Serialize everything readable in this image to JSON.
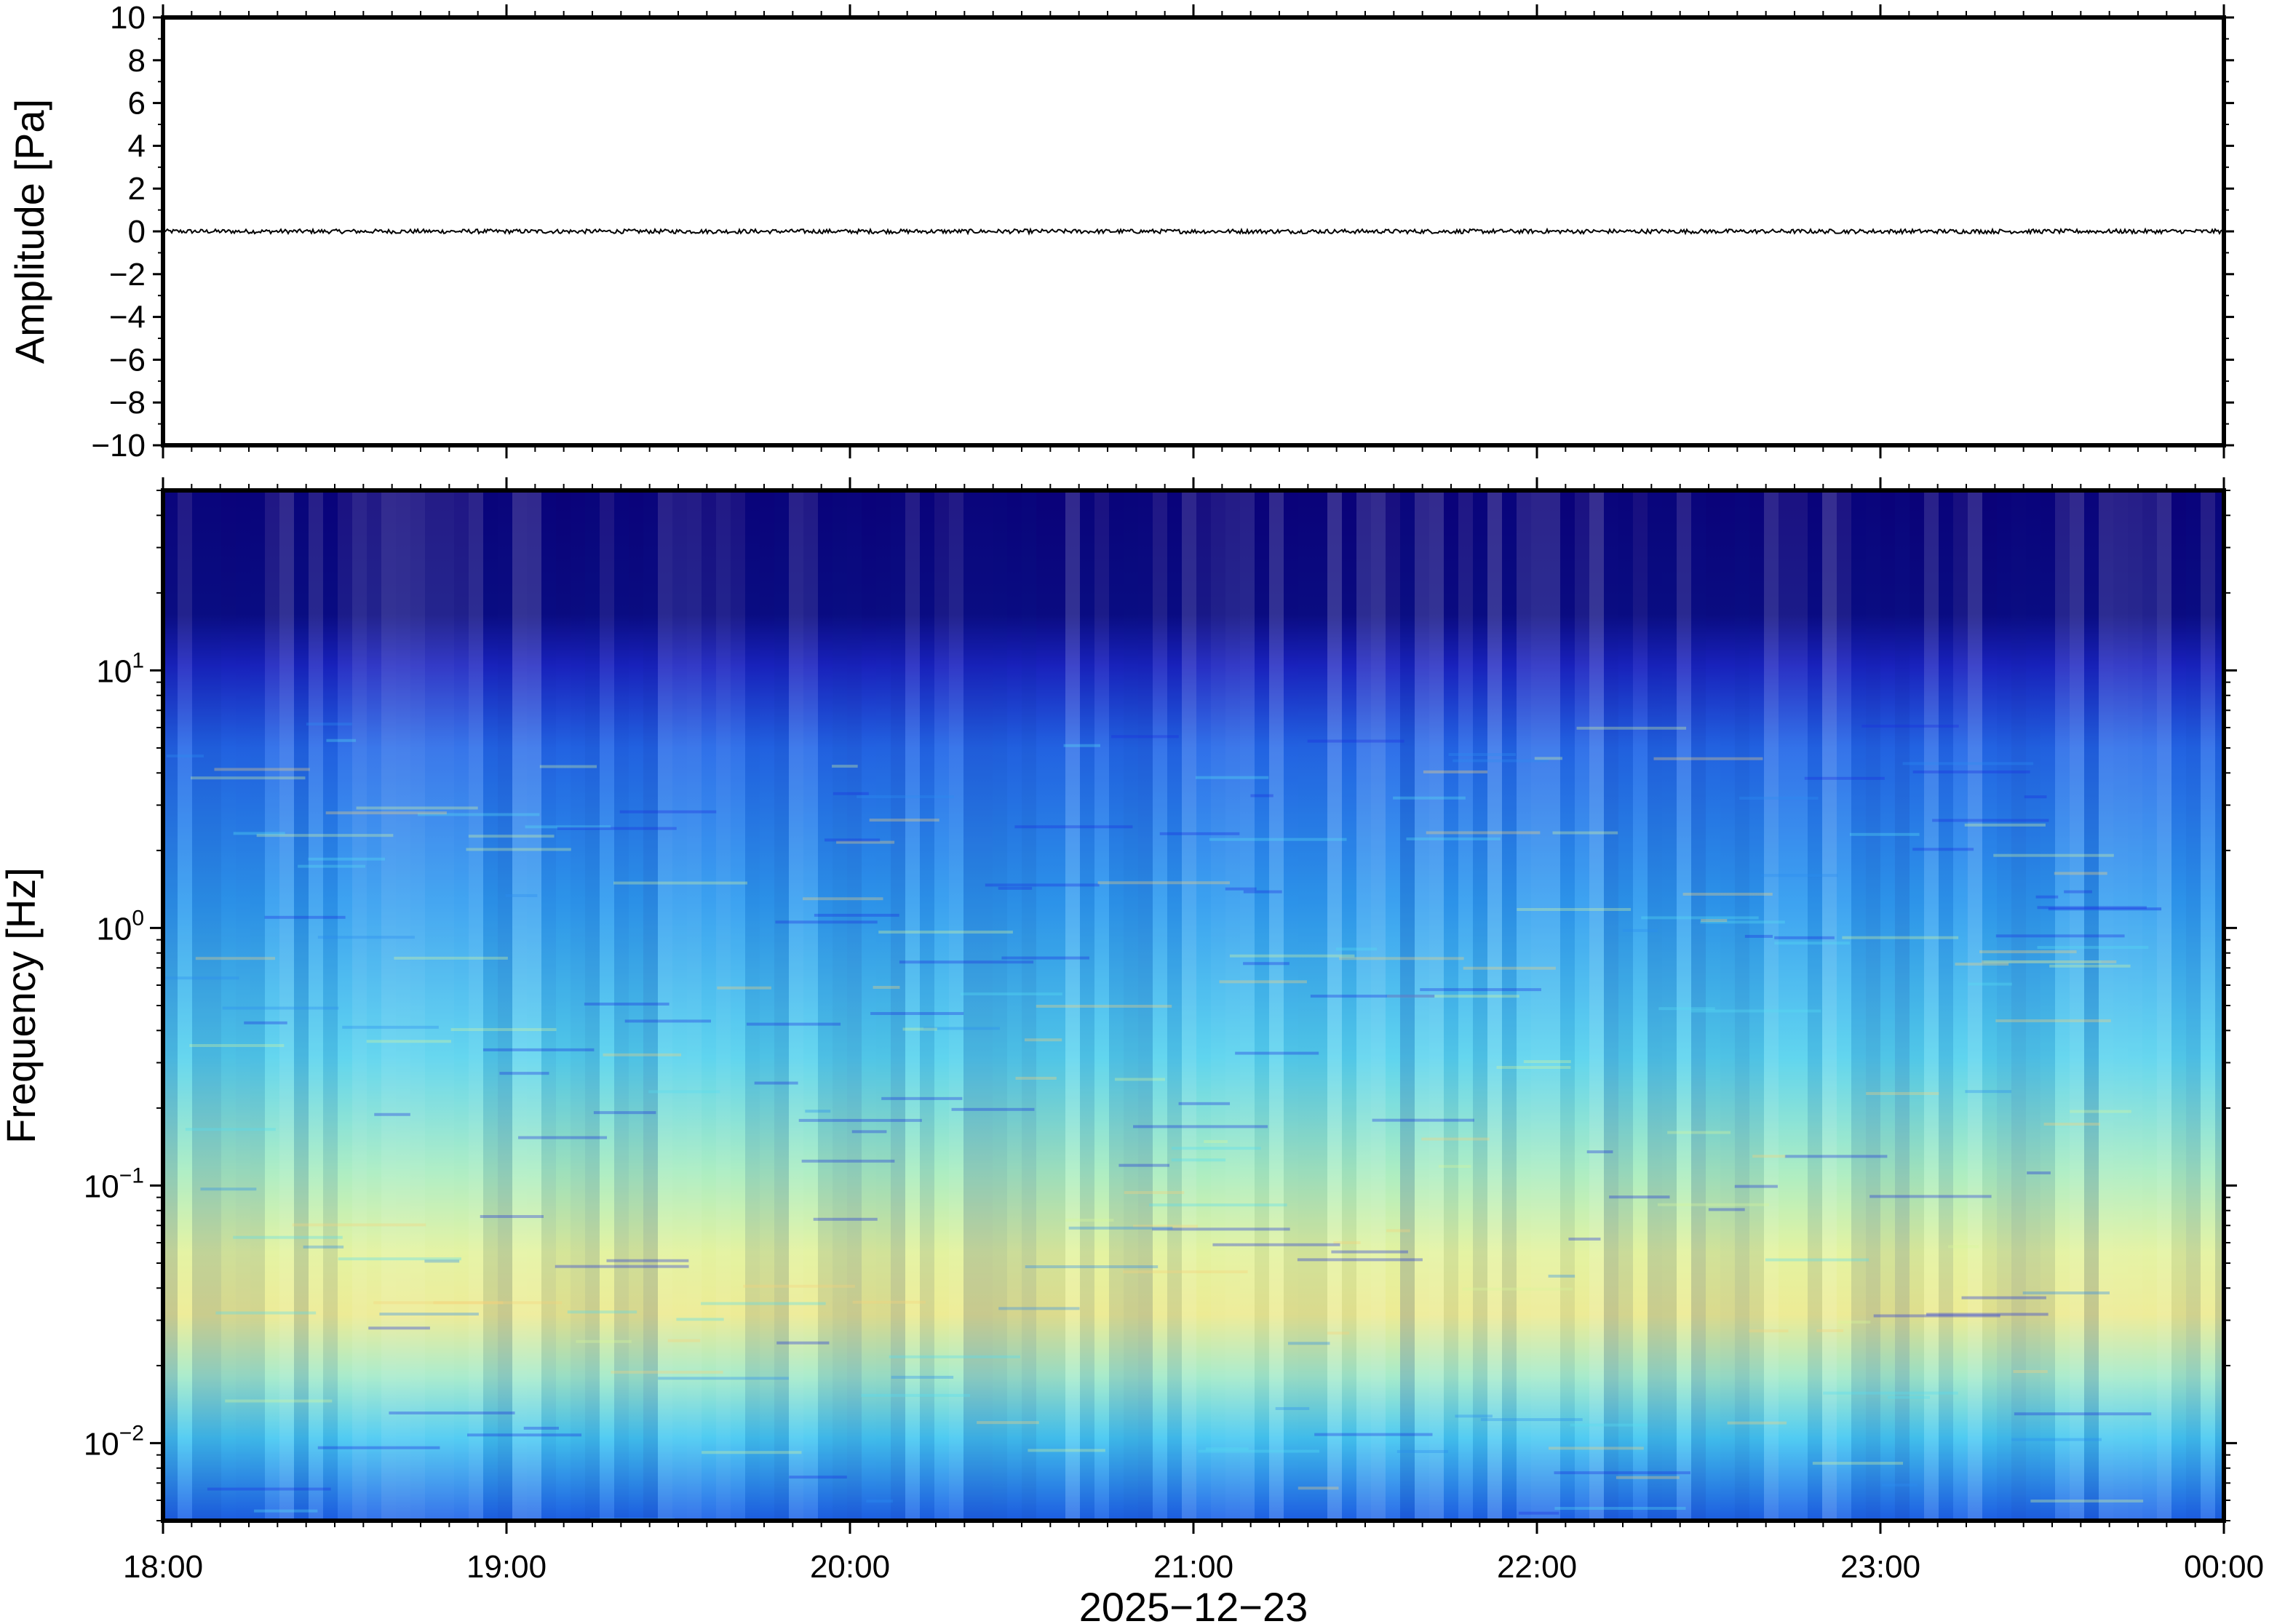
{
  "chart_data": [
    {
      "type": "line",
      "ylabel": "Amplitude [Pa]",
      "ylim": [
        -10,
        10
      ],
      "yticks": [
        10,
        8,
        6,
        4,
        2,
        0,
        -2,
        -4,
        -6,
        -8,
        -10
      ],
      "ytick_labels": [
        "10",
        "8",
        "6",
        "4",
        "2",
        "0",
        "−2",
        "−4",
        "−6",
        "−8",
        "−10"
      ],
      "series": [
        {
          "values_description": "waveform near zero, peak amplitude approx ±0.1 Pa",
          "mean": 0.0,
          "peak_abs": 0.1
        }
      ],
      "grid": false
    },
    {
      "type": "heatmap",
      "ylabel": "Frequency [Hz]",
      "xlabel": "2025−12−23",
      "y_scale": "log",
      "ylim": [
        0.005,
        50
      ],
      "yticks": [
        {
          "base": "10",
          "exp": "1",
          "value": 10
        },
        {
          "base": "10",
          "exp": "0",
          "value": 1
        },
        {
          "base": "10",
          "exp": "−1",
          "value": 0.1
        },
        {
          "base": "10",
          "exp": "−2",
          "value": 0.01
        }
      ],
      "x_range": [
        "18:00",
        "00:00"
      ],
      "xtick_labels": [
        "18:00",
        "19:00",
        "20:00",
        "21:00",
        "22:00",
        "23:00",
        "00:00"
      ],
      "colormap": [
        "#0a0078",
        "#1e2ee0",
        "#2a8cf0",
        "#55dcf0",
        "#d8f59a",
        "#f5d27a"
      ],
      "grid": false
    }
  ]
}
